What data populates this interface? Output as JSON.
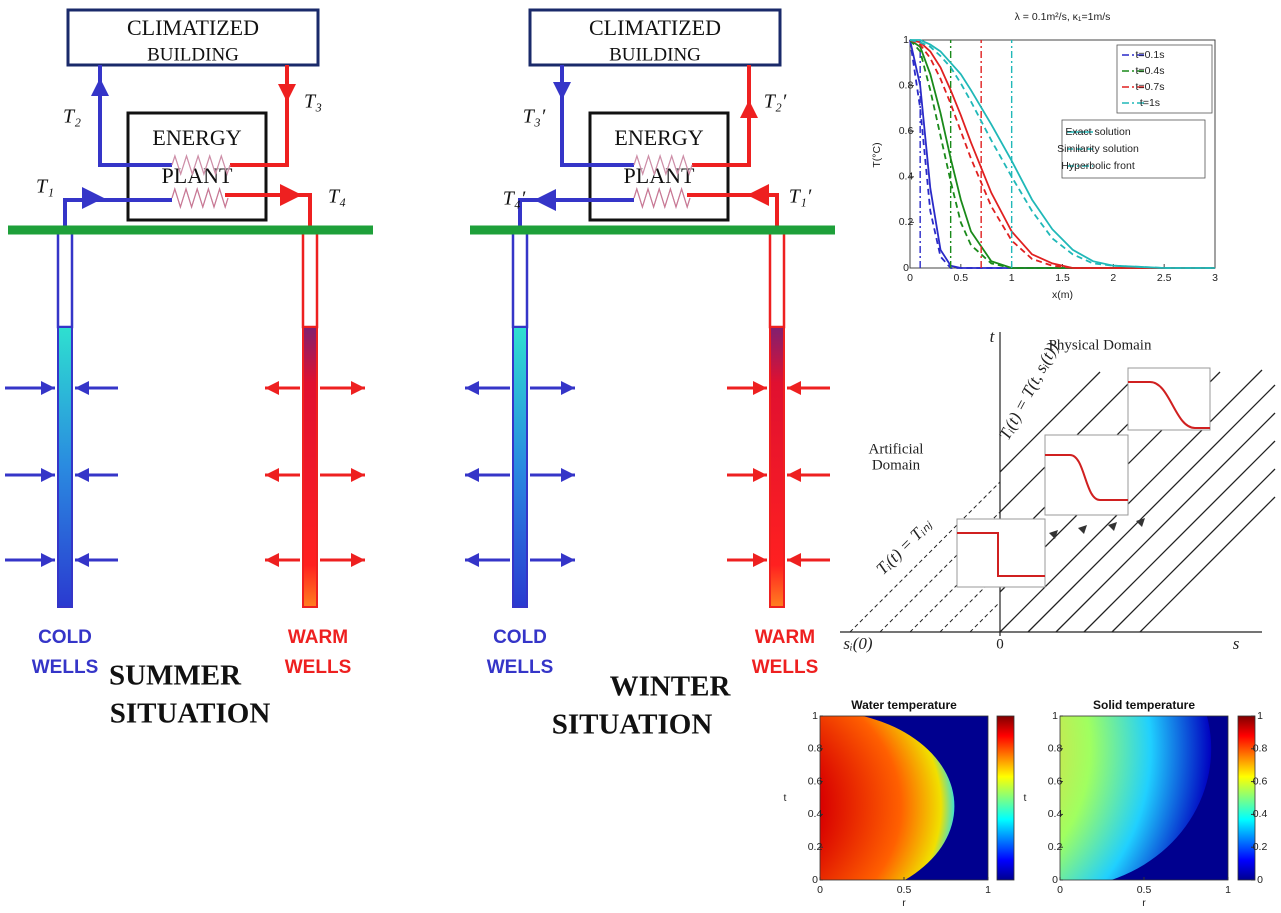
{
  "summer": {
    "building": [
      "CLIMATIZED",
      "BUILDING"
    ],
    "plant": [
      "ENERGY",
      "PLANT"
    ],
    "temps": [
      "T₁",
      "T₂",
      "T₃",
      "T₄"
    ],
    "cold": [
      "COLD",
      "WELLS"
    ],
    "warm": [
      "WARM",
      "WELLS"
    ],
    "situation": [
      "SUMMER",
      "SITUATION"
    ]
  },
  "winter": {
    "building": [
      "CLIMATIZED",
      "BUILDING"
    ],
    "plant": [
      "ENERGY",
      "PLANT"
    ],
    "temps": [
      "T₄′",
      "T₃′",
      "T₂′",
      "T₁′"
    ],
    "cold": [
      "COLD",
      "WELLS"
    ],
    "warm": [
      "WARM",
      "WELLS"
    ],
    "situation": [
      "WINTER",
      "SITUATION"
    ]
  },
  "domain_diagram": {
    "t_axis": "t",
    "s_axis": "s",
    "origin": 0,
    "front_start": "sᵢ(0)",
    "physical": "Physical Domain",
    "artificial": [
      "Artificial",
      "Domain"
    ],
    "physical_condition": "Tᵢ(t) = T(t, sᵢ(t))",
    "injection_condition": "Tᵢ(t) = Tᵢₙⱼ"
  },
  "chart_data": [
    {
      "type": "line",
      "title": "λ = 0.1m²/s,  κ₁=1m/s",
      "x_label": "x(m)",
      "y_label": "T(°C)",
      "x": [
        0,
        0.1,
        0.2,
        0.3,
        0.4,
        0.5,
        0.6,
        0.8,
        1.0,
        1.2,
        1.4,
        1.6,
        1.8,
        2.0,
        2.5,
        3.0
      ],
      "series": [
        {
          "name": "t=0.1s",
          "color": "#2a2ac8",
          "exact": [
            1,
            0.8,
            0.35,
            0.08,
            0.01,
            0,
            0,
            0,
            0,
            0,
            0,
            0,
            0,
            0,
            0,
            0
          ],
          "similarity": [
            1,
            0.7,
            0.25,
            0.05,
            0,
            0,
            0,
            0,
            0,
            0,
            0,
            0,
            0,
            0,
            0,
            0
          ],
          "front": 0.1
        },
        {
          "name": "t=0.4s",
          "color": "#1a8a1a",
          "exact": [
            1,
            0.97,
            0.85,
            0.68,
            0.48,
            0.3,
            0.16,
            0.03,
            0,
            0,
            0,
            0,
            0,
            0,
            0,
            0
          ],
          "similarity": [
            1,
            0.95,
            0.78,
            0.58,
            0.38,
            0.2,
            0.1,
            0.02,
            0,
            0,
            0,
            0,
            0,
            0,
            0,
            0
          ],
          "front": 0.4
        },
        {
          "name": "t=0.7s",
          "color": "#e02020",
          "exact": [
            1,
            0.99,
            0.95,
            0.88,
            0.78,
            0.67,
            0.55,
            0.33,
            0.16,
            0.06,
            0.02,
            0,
            0,
            0,
            0,
            0
          ],
          "similarity": [
            1,
            0.98,
            0.92,
            0.83,
            0.72,
            0.6,
            0.48,
            0.27,
            0.12,
            0.04,
            0.01,
            0,
            0,
            0,
            0,
            0
          ],
          "front": 0.7
        },
        {
          "name": "t=1s",
          "color": "#20b8b8",
          "exact": [
            1,
            1,
            0.98,
            0.95,
            0.9,
            0.85,
            0.78,
            0.63,
            0.47,
            0.3,
            0.17,
            0.08,
            0.03,
            0.01,
            0,
            0
          ],
          "similarity": [
            1,
            0.99,
            0.97,
            0.93,
            0.88,
            0.81,
            0.73,
            0.56,
            0.4,
            0.25,
            0.13,
            0.06,
            0.02,
            0.01,
            0,
            0
          ],
          "front": 1
        }
      ],
      "styles": [
        "Exact solution",
        "Similarity solution",
        "Hyperbolic front"
      ],
      "xlim": [
        0,
        3
      ],
      "xticks": [
        0,
        0.5,
        1,
        1.5,
        2,
        2.5,
        3
      ],
      "ylim": [
        0,
        1
      ],
      "yticks": [
        0,
        0.2,
        0.4,
        0.6,
        0.8,
        1
      ]
    },
    {
      "type": "heatmap",
      "title": "Water temperature",
      "x_label": "r",
      "y_label": "t",
      "xlim": [
        0,
        1
      ],
      "xticks": [
        0,
        0.5,
        1
      ],
      "ylim": [
        0,
        1
      ],
      "yticks": [
        0,
        0.2,
        0.4,
        0.6,
        0.8,
        1
      ]
    },
    {
      "type": "heatmap",
      "title": "Solid temperature",
      "x_label": "r",
      "y_label": "t",
      "xlim": [
        0,
        1
      ],
      "xticks": [
        0,
        0.5,
        1
      ],
      "ylim": [
        0,
        1
      ],
      "yticks": [
        0,
        0.2,
        0.4,
        0.6,
        0.8,
        1
      ],
      "clim": [
        0,
        1
      ],
      "cticks": [
        0,
        0.2,
        0.4,
        0.6,
        0.8,
        1
      ]
    }
  ]
}
